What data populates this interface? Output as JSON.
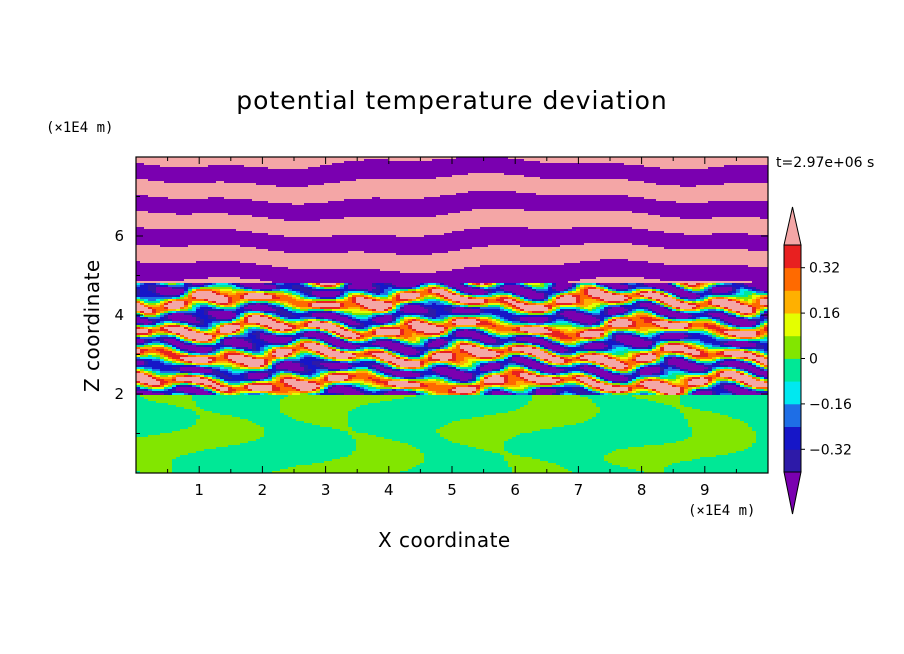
{
  "chart_data": {
    "type": "heatmap",
    "title": "potential temperature deviation",
    "xlabel": "X coordinate",
    "ylabel": "Z coordinate",
    "x_unit": "(×1E4 m)",
    "y_unit": "(×1E4 m)",
    "time_label": "t=2.97e+06 s",
    "xlim": [
      0,
      10
    ],
    "ylim": [
      0,
      8
    ],
    "x_ticks": [
      "1",
      "2",
      "3",
      "4",
      "5",
      "6",
      "7",
      "8",
      "9"
    ],
    "y_ticks": [
      "2",
      "4",
      "6"
    ],
    "colorbar": {
      "levels": [
        -0.48,
        -0.4,
        -0.32,
        -0.24,
        -0.16,
        -0.08,
        0,
        0.08,
        0.16,
        0.24,
        0.32,
        0.4,
        0.48
      ],
      "labels": [
        "0.32",
        "0.16",
        "0",
        "−0.16",
        "−0.32"
      ],
      "colors": [
        "#7a00b0",
        "#2d1aa8",
        "#1616c8",
        "#1e6ee6",
        "#00e8f0",
        "#00e896",
        "#82e600",
        "#e4ff00",
        "#ffb000",
        "#ff6a00",
        "#e82020",
        "#f4a6a6"
      ],
      "extend": "both"
    },
    "description_regions": {
      "stable_layer_z": [
        0,
        2
      ],
      "turbulent_layer_z": [
        2,
        4.8
      ],
      "upper_banded_layer_z": [
        4.8,
        8
      ]
    }
  }
}
